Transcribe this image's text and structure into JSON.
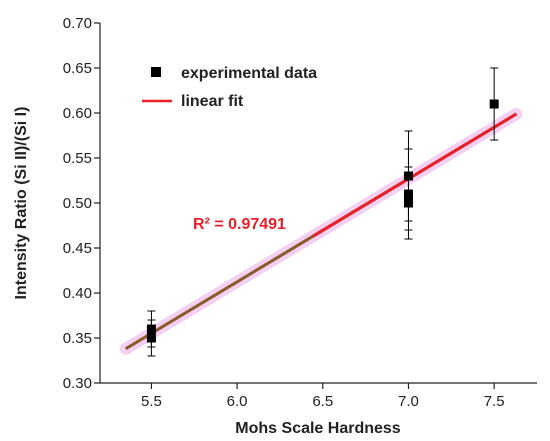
{
  "chart_data": {
    "type": "scatter",
    "xlabel": "Mohs Scale Hardness",
    "ylabel": "Intensity Ratio (Si II)/(Si I)",
    "xlim": [
      5.2,
      7.75
    ],
    "ylim": [
      0.3,
      0.7
    ],
    "xticks": [
      "5.5",
      "6.0",
      "6.5",
      "7.0",
      "7.5"
    ],
    "yticks": [
      "0.30",
      "0.35",
      "0.40",
      "0.45",
      "0.50",
      "0.55",
      "0.60",
      "0.65",
      "0.70"
    ],
    "grid": false,
    "legend_position": "top-left",
    "series": [
      {
        "name": "experimental data",
        "kind": "scatter",
        "color": "#000000",
        "marker": "square",
        "points": [
          {
            "x": 5.5,
            "y": 0.36,
            "err_low": 0.34,
            "err_high": 0.38
          },
          {
            "x": 5.5,
            "y": 0.35,
            "err_low": 0.33,
            "err_high": 0.37
          },
          {
            "x": 7.0,
            "y": 0.53,
            "err_low": 0.48,
            "err_high": 0.58
          },
          {
            "x": 7.0,
            "y": 0.51,
            "err_low": 0.47,
            "err_high": 0.56
          },
          {
            "x": 7.0,
            "y": 0.5,
            "err_low": 0.46,
            "err_high": 0.54
          },
          {
            "x": 7.5,
            "y": 0.61,
            "err_low": 0.57,
            "err_high": 0.65
          }
        ]
      },
      {
        "name": "linear fit",
        "kind": "line",
        "color": "#e8202a",
        "x": [
          5.35,
          7.63
        ],
        "y": [
          0.338,
          0.599
        ]
      }
    ],
    "annotations": [
      {
        "text": "R² = 0.97491",
        "x": 5.9,
        "y": 0.48,
        "color": "#e8202a"
      }
    ]
  }
}
